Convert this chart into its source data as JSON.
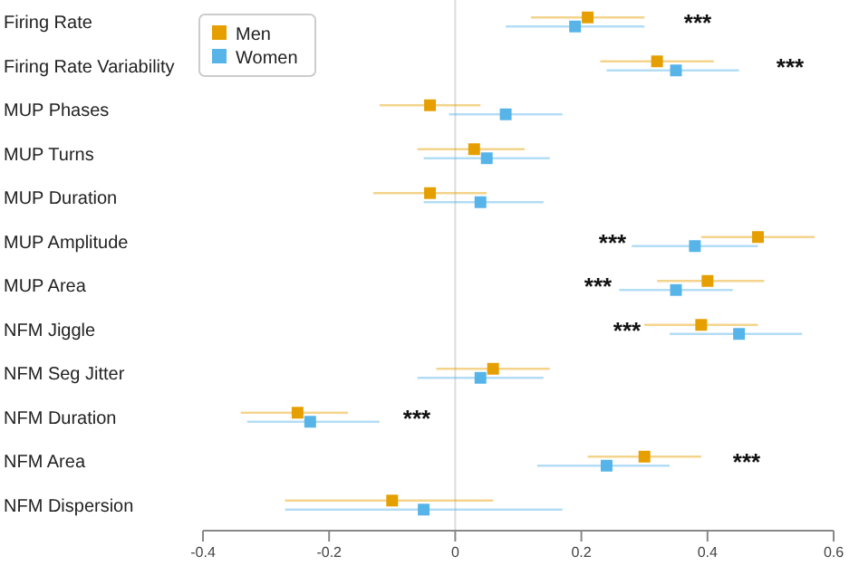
{
  "chart_data": {
    "type": "scatter",
    "orientation": "horizontal",
    "categories": [
      "Firing Rate",
      "Firing Rate Variability",
      "MUP Phases",
      "MUP Turns",
      "MUP Duration",
      "MUP Amplitude",
      "MUP Area",
      "NFM Jiggle",
      "NFM Seg Jitter",
      "NFM Duration",
      "NFM Area",
      "NFM Dispersion"
    ],
    "series": [
      {
        "name": "Men",
        "color": "#e69f00",
        "values": [
          0.21,
          0.32,
          -0.04,
          0.03,
          -0.04,
          0.48,
          0.4,
          0.39,
          0.06,
          -0.25,
          0.3,
          -0.1
        ],
        "errors": [
          [
            0.12,
            0.3
          ],
          [
            0.23,
            0.41
          ],
          [
            -0.12,
            0.04
          ],
          [
            -0.06,
            0.11
          ],
          [
            -0.13,
            0.05
          ],
          [
            0.39,
            0.57
          ],
          [
            0.32,
            0.49
          ],
          [
            0.3,
            0.48
          ],
          [
            -0.03,
            0.15
          ],
          [
            -0.34,
            -0.17
          ],
          [
            0.21,
            0.39
          ],
          [
            -0.27,
            0.06
          ]
        ]
      },
      {
        "name": "Women",
        "color": "#56b4e9",
        "values": [
          0.19,
          0.35,
          0.08,
          0.05,
          0.04,
          0.38,
          0.35,
          0.45,
          0.04,
          -0.23,
          0.24,
          -0.05
        ],
        "errors": [
          [
            0.08,
            0.3
          ],
          [
            0.24,
            0.45
          ],
          [
            -0.01,
            0.17
          ],
          [
            -0.05,
            0.15
          ],
          [
            -0.05,
            0.14
          ],
          [
            0.28,
            0.48
          ],
          [
            0.26,
            0.44
          ],
          [
            0.34,
            0.55
          ],
          [
            -0.06,
            0.14
          ],
          [
            -0.33,
            -0.12
          ],
          [
            0.13,
            0.34
          ],
          [
            -0.27,
            0.17
          ]
        ]
      }
    ],
    "xlim": [
      -0.4,
      0.6
    ],
    "xticks": [
      -0.4,
      -0.2,
      0,
      0.2,
      0.4,
      0.6
    ],
    "ref_lines": [
      {
        "axis": "x",
        "value": 0,
        "color": "#dddddd"
      }
    ],
    "annotations": [
      "***",
      "***",
      "***",
      "***",
      "***",
      "***",
      "***"
    ],
    "legend": "top left",
    "marker": "square",
    "grid": false
  }
}
